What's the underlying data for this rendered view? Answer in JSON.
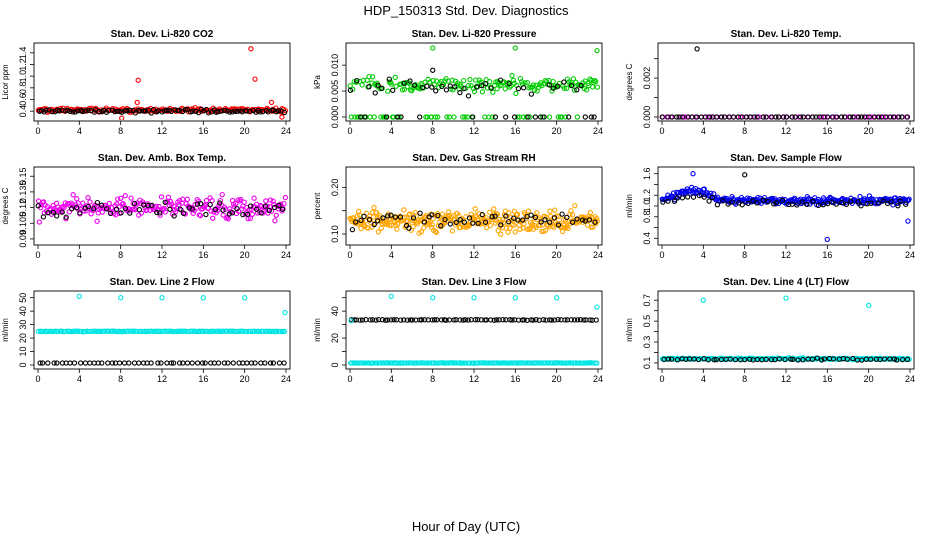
{
  "page": {
    "title": "HDP_150313  Std. Dev. Diagnostics",
    "xlabel": "Hour of Day (UTC)"
  },
  "chart_data": [
    {
      "type": "scatter",
      "title": "Stan. Dev. Li-820 CO2",
      "ylabel": "Licor ppm",
      "xlim": [
        0,
        24
      ],
      "ylim": [
        0.3,
        1.5
      ],
      "xticks": [
        0,
        4,
        8,
        12,
        16,
        20,
        24
      ],
      "yticks": [
        0.4,
        0.6,
        0.8,
        1.0,
        1.2,
        1.4
      ],
      "ytick_labels": [
        "0.4",
        "0.6",
        "0.8",
        "1.0",
        "1.2",
        "1.4"
      ],
      "series": [
        {
          "name": "red",
          "color": "#ff0000",
          "base": 0.42,
          "spread": 0.05,
          "count": 190,
          "outliers": [
            [
              9.7,
              0.93
            ],
            [
              9.6,
              0.55
            ],
            [
              20.6,
              1.47
            ],
            [
              21.0,
              0.95
            ],
            [
              22.6,
              0.55
            ],
            [
              8.1,
              0.28
            ],
            [
              23.6,
              0.3
            ]
          ]
        },
        {
          "name": "black",
          "color": "#000000",
          "base": 0.4,
          "spread": 0.04,
          "count": 95,
          "outliers": []
        }
      ]
    },
    {
      "type": "scatter",
      "title": "Stan. Dev. Li-820 Pressure",
      "ylabel": "kPa",
      "xlim": [
        0,
        24
      ],
      "ylim": [
        0,
        0.0135
      ],
      "xticks": [
        0,
        4,
        8,
        12,
        16,
        20,
        24
      ],
      "yticks": [
        0,
        0.005,
        0.01
      ],
      "ytick_labels": [
        "0.000",
        "0.005",
        "0.010"
      ],
      "series": [
        {
          "name": "green",
          "color": "#00cc00",
          "base": 0.0063,
          "spread": 0.0022,
          "count": 210,
          "zero_band": 0.2,
          "outliers": [
            [
              8.0,
              0.0133
            ],
            [
              16.0,
              0.0133
            ],
            [
              23.9,
              0.0128
            ]
          ]
        },
        {
          "name": "black",
          "color": "#000000",
          "base": 0.0058,
          "spread": 0.002,
          "count": 55,
          "zero_band": 0.35,
          "outliers": [
            [
              8.0,
              0.009
            ],
            [
              3.8,
              0.0073
            ]
          ]
        }
      ]
    },
    {
      "type": "scatter",
      "title": "Stan. Dev. Li-820 Temp.",
      "ylabel": "degrees C",
      "xlim": [
        0,
        24
      ],
      "ylim": [
        0,
        0.0036
      ],
      "xticks": [
        0,
        4,
        8,
        12,
        16,
        20,
        24
      ],
      "yticks": [
        0,
        0.001,
        0.002,
        0.003
      ],
      "ytick_labels": [
        "0.000",
        "",
        "0.002",
        ""
      ],
      "series": [
        {
          "name": "magenta",
          "color": "#ff00ff",
          "base": 0.0,
          "spread": 0.0,
          "count": 60,
          "outliers": []
        },
        {
          "name": "black",
          "color": "#000000",
          "base": 0.0,
          "spread": 0.0,
          "count": 60,
          "outliers": [
            [
              3.4,
              0.0035
            ]
          ]
        }
      ]
    },
    {
      "type": "scatter",
      "title": "Stan. Dev. Amb. Box Temp.",
      "ylabel": "degrees C",
      "xlim": [
        0,
        24
      ],
      "ylim": [
        0.088,
        0.155
      ],
      "xticks": [
        0,
        4,
        8,
        12,
        16,
        20,
        24
      ],
      "yticks": [
        0.09,
        0.105,
        0.12,
        0.135,
        0.15
      ],
      "ytick_labels": [
        "0.09",
        "0.105",
        "0.12",
        "0.135",
        "0.15"
      ],
      "series": [
        {
          "name": "magenta",
          "color": "#ee00ee",
          "base": 0.12,
          "spread": 0.015,
          "count": 240,
          "outliers": []
        },
        {
          "name": "black",
          "color": "#000000",
          "base": 0.118,
          "spread": 0.01,
          "count": 55,
          "outliers": []
        }
      ]
    },
    {
      "type": "scatter",
      "title": "Stan. Dev. Gas Stream RH",
      "ylabel": "percent",
      "xlim": [
        0,
        24
      ],
      "ylim": [
        0.085,
        0.235
      ],
      "xticks": [
        0,
        4,
        8,
        12,
        16,
        20,
        24
      ],
      "yticks": [
        0.1,
        0.15,
        0.2
      ],
      "ytick_labels": [
        "0.10",
        "",
        "0.20"
      ],
      "series": [
        {
          "name": "orange",
          "color": "#ffa500",
          "base": 0.13,
          "spread": 0.035,
          "count": 320,
          "outliers": []
        },
        {
          "name": "black",
          "color": "#000000",
          "base": 0.13,
          "spread": 0.025,
          "count": 55,
          "outliers": []
        }
      ]
    },
    {
      "type": "scatter",
      "title": "Stan. Dev. Sample Flow",
      "ylabel": "ml/min",
      "xlim": [
        0,
        24
      ],
      "ylim": [
        0.35,
        1.65
      ],
      "xticks": [
        0,
        4,
        8,
        12,
        16,
        20,
        24
      ],
      "yticks": [
        0.4,
        0.6,
        0.8,
        1.0,
        1.2,
        1.4,
        1.6
      ],
      "ytick_labels": [
        "0.4",
        "",
        "0.8",
        "1.0",
        "1.2",
        "",
        "1.6"
      ],
      "series": [
        {
          "name": "blue",
          "color": "#0000ee",
          "base": 1.1,
          "spread": 0.1,
          "count": 260,
          "hump": 0.2,
          "outliers": [
            [
              16.0,
              0.38
            ],
            [
              23.8,
              0.72
            ],
            [
              3.0,
              1.6
            ]
          ]
        },
        {
          "name": "black",
          "color": "#000000",
          "base": 1.05,
          "spread": 0.08,
          "count": 50,
          "hump": 0.12,
          "outliers": [
            [
              8.0,
              1.58
            ]
          ]
        }
      ]
    },
    {
      "type": "scatter",
      "title": "Stan. Dev. Line 2 Flow",
      "ylabel": "ml/min",
      "xlim": [
        0,
        24
      ],
      "ylim": [
        0,
        52
      ],
      "xticks": [
        0,
        4,
        8,
        12,
        16,
        20,
        24
      ],
      "yticks": [
        0,
        10,
        20,
        30,
        40,
        50
      ],
      "ytick_labels": [
        "0",
        "10",
        "20",
        "30",
        "40",
        "50"
      ],
      "series": [
        {
          "name": "cyan high",
          "color": "#00e5e5",
          "base": 25,
          "spread": 0.3,
          "count": 150,
          "outliers": [
            [
              4.0,
              51
            ],
            [
              8.0,
              50
            ],
            [
              12.0,
              50
            ],
            [
              16.0,
              50
            ],
            [
              20.0,
              50
            ],
            [
              23.9,
              39
            ]
          ]
        },
        {
          "name": "black",
          "color": "#000000",
          "base": 1.5,
          "spread": 0.0,
          "count": 55,
          "outliers": []
        }
      ]
    },
    {
      "type": "scatter",
      "title": "Stan. Dev. Line 3 Flow",
      "ylabel": "ml/min",
      "xlim": [
        0,
        24
      ],
      "ylim": [
        0,
        52
      ],
      "xticks": [
        0,
        4,
        8,
        12,
        16,
        20,
        24
      ],
      "yticks": [
        0,
        10,
        20,
        30,
        40,
        50
      ],
      "ytick_labels": [
        "0",
        "",
        "20",
        "",
        "40",
        ""
      ],
      "series": [
        {
          "name": "black",
          "color": "#000000",
          "base": 33.5,
          "spread": 0.3,
          "count": 80,
          "outliers": []
        },
        {
          "name": "cyan low",
          "color": "#00e5e5",
          "base": 1.5,
          "spread": 0.2,
          "count": 150,
          "outliers": [
            [
              4.0,
              51
            ],
            [
              8.0,
              50
            ],
            [
              12.0,
              50
            ],
            [
              16.0,
              50
            ],
            [
              20.0,
              50
            ],
            [
              23.9,
              43
            ],
            [
              0.1,
              33
            ]
          ]
        }
      ]
    },
    {
      "type": "scatter",
      "title": "Stan. Dev. Line 4 (LT) Flow",
      "ylabel": "ml/min",
      "xlim": [
        0,
        24
      ],
      "ylim": [
        0.08,
        0.75
      ],
      "xticks": [
        0,
        4,
        8,
        12,
        16,
        20,
        24
      ],
      "yticks": [
        0.1,
        0.2,
        0.3,
        0.4,
        0.5,
        0.6,
        0.7
      ],
      "ytick_labels": [
        "0.1",
        "",
        "0.3",
        "",
        "0.5",
        "",
        "0.7"
      ],
      "series": [
        {
          "name": "cyan",
          "color": "#00e5e5",
          "base": 0.14,
          "spread": 0.012,
          "count": 180,
          "outliers": [
            [
              4.0,
              0.7
            ],
            [
              12.0,
              0.72
            ],
            [
              20.0,
              0.65
            ]
          ]
        },
        {
          "name": "black",
          "color": "#000000",
          "base": 0.135,
          "spread": 0.012,
          "count": 55,
          "outliers": []
        }
      ]
    }
  ]
}
